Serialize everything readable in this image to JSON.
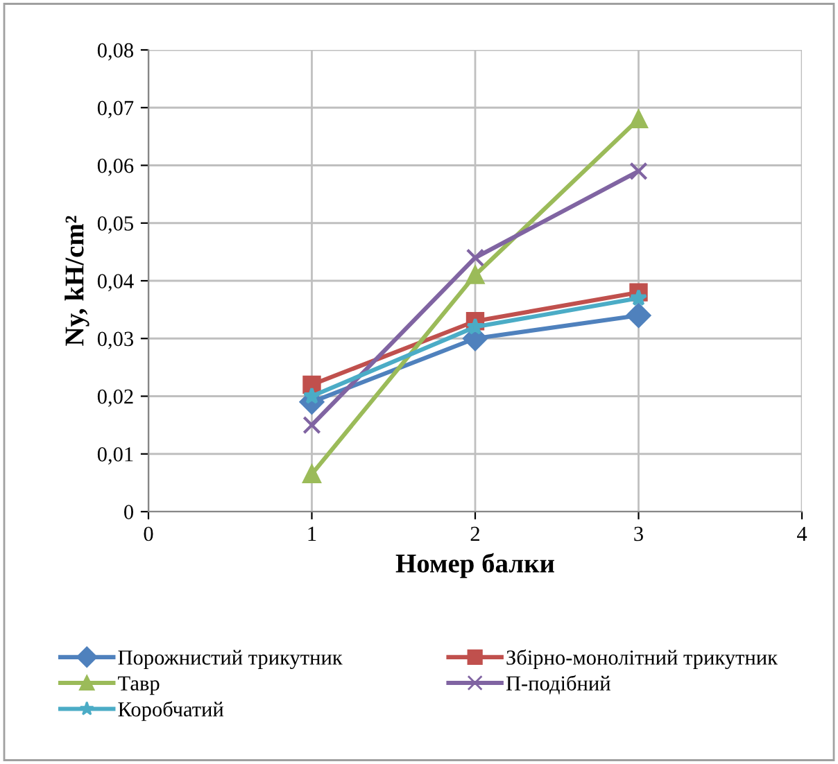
{
  "chart_data": {
    "type": "line",
    "xlabel": "Номер балки",
    "ylabel": "Ny, kH/cm²",
    "x": [
      1,
      2,
      3
    ],
    "series": [
      {
        "name": "Порожнистий трикутник",
        "color": "#4f81bd",
        "values": [
          0.019,
          0.03,
          0.034
        ],
        "marker": "diamond"
      },
      {
        "name": "Збірно-монолітний трикутник",
        "color": "#c0504d",
        "values": [
          0.022,
          0.033,
          0.038
        ],
        "marker": "square"
      },
      {
        "name": "Тавр",
        "color": "#9bbb59",
        "values": [
          0.0065,
          0.041,
          0.068
        ],
        "marker": "triangle"
      },
      {
        "name": "П-подібний",
        "color": "#8064a2",
        "values": [
          0.015,
          0.044,
          0.059
        ],
        "marker": "cross"
      },
      {
        "name": "Коробчатий",
        "color": "#4bacc6",
        "values": [
          0.02,
          0.032,
          0.037
        ],
        "marker": "star"
      }
    ],
    "xlim": [
      0,
      4
    ],
    "xticks": [
      0,
      1,
      2,
      3,
      4
    ],
    "ylim": [
      0,
      0.08
    ],
    "yticks": [
      0,
      {
        "value": 0.01,
        "label": "0,01"
      },
      {
        "value": 0.02,
        "label": "0,02"
      },
      {
        "value": 0.03,
        "label": "0,03"
      },
      {
        "value": 0.04,
        "label": "0,04"
      },
      {
        "value": 0.05,
        "label": "0,05"
      },
      {
        "value": 0.06,
        "label": "0,06"
      },
      {
        "value": 0.07,
        "label": "0,07"
      },
      {
        "value": 0.08,
        "label": "0,08"
      }
    ],
    "grid": true,
    "legend": "bottom",
    "line_style": "solid"
  }
}
